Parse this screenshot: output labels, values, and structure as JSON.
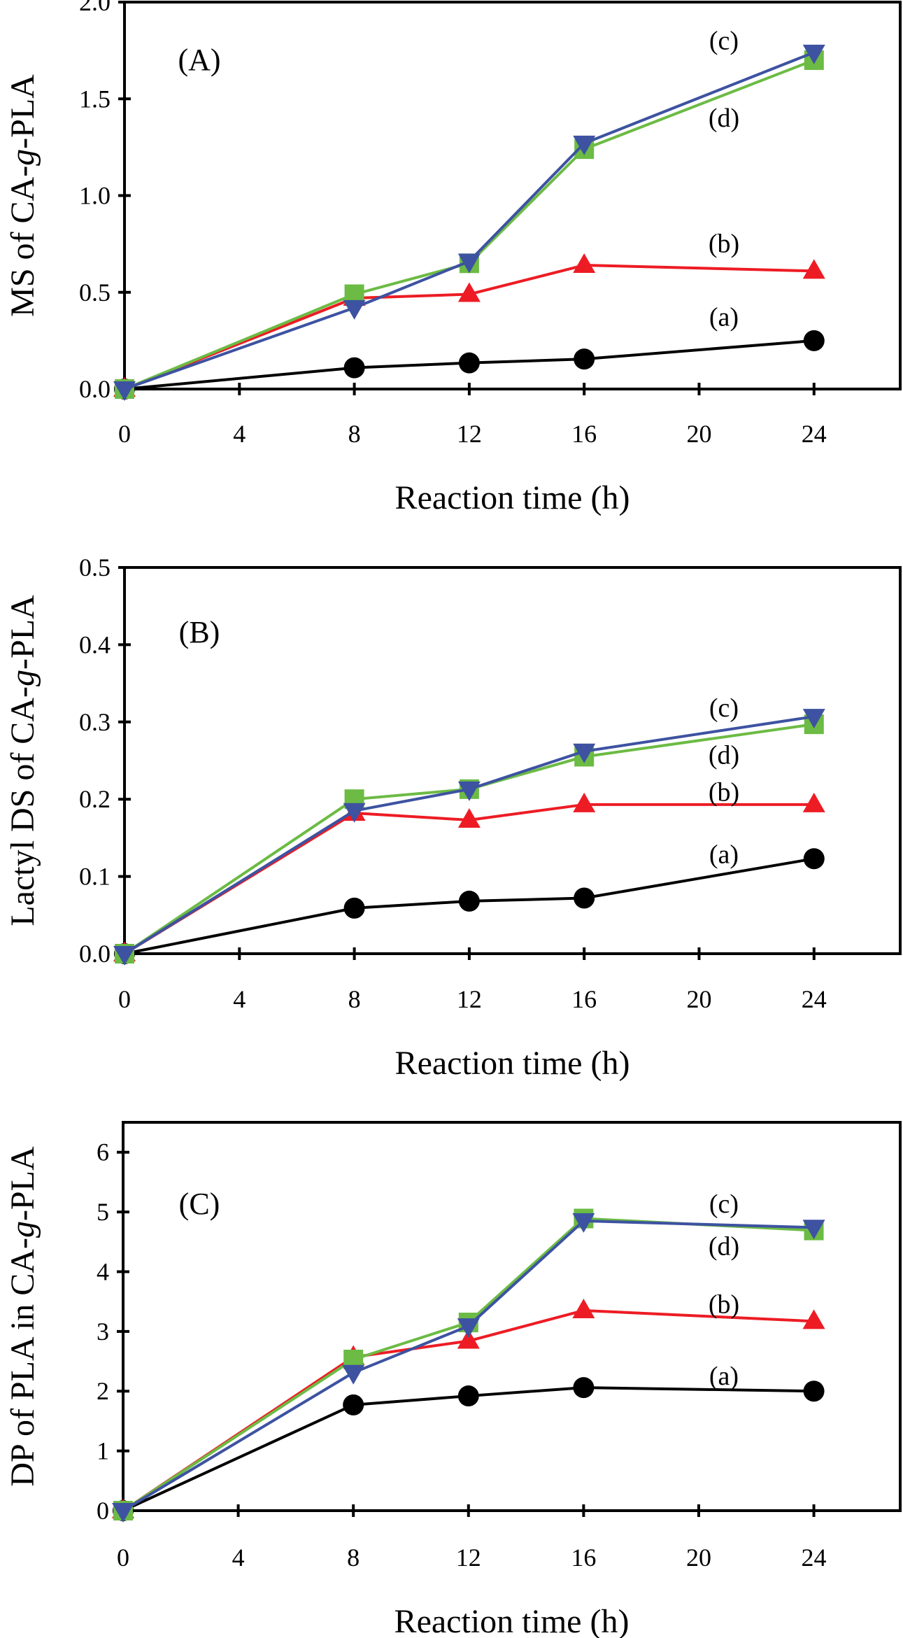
{
  "chart_data": [
    {
      "type": "line",
      "panel_label": "(A)",
      "xlabel": "Reaction time (h)",
      "ylabel_parts": [
        "MS of CA-",
        "g",
        "-PLA"
      ],
      "x": [
        0,
        8,
        12,
        16,
        24
      ],
      "xlim": [
        0,
        27
      ],
      "xticks": [
        0,
        4,
        8,
        12,
        16,
        20,
        24
      ],
      "xtick_labels": [
        "0",
        "4",
        "8",
        "12",
        "16",
        "20",
        "24"
      ],
      "ylim": [
        0,
        2.0
      ],
      "yticks": [
        0,
        0.5,
        1.0,
        1.5,
        2.0
      ],
      "ytick_labels": [
        "0.0",
        "0.5",
        "1.0",
        "1.5",
        "2.0"
      ],
      "grid": false,
      "series": [
        {
          "name": "(a)",
          "marker": "circle",
          "color": "#000000",
          "values": [
            0,
            0.11,
            0.135,
            0.155,
            0.25
          ],
          "label_y": 0.37
        },
        {
          "name": "(b)",
          "marker": "triangle-up",
          "color": "#ed1c24",
          "values": [
            0,
            0.47,
            0.49,
            0.64,
            0.61
          ],
          "label_y": 0.75
        },
        {
          "name": "(d)",
          "marker": "square",
          "color": "#6cbb44",
          "values": [
            0,
            0.49,
            0.65,
            1.24,
            1.7
          ],
          "label_y": 1.4
        },
        {
          "name": "(c)",
          "marker": "triangle-down",
          "color": "#3d52a1",
          "values": [
            0,
            0.42,
            0.66,
            1.27,
            1.74
          ],
          "label_y": 1.8
        }
      ]
    },
    {
      "type": "line",
      "panel_label": "(B)",
      "xlabel": "Reaction time (h)",
      "ylabel_parts": [
        "Lactyl DS of CA-",
        "g",
        "-PLA"
      ],
      "x": [
        0,
        8,
        12,
        16,
        24
      ],
      "xlim": [
        0,
        27
      ],
      "xticks": [
        0,
        4,
        8,
        12,
        16,
        20,
        24
      ],
      "xtick_labels": [
        "0",
        "4",
        "8",
        "12",
        "16",
        "20",
        "24"
      ],
      "ylim": [
        0,
        0.5
      ],
      "yticks": [
        0,
        0.1,
        0.2,
        0.3,
        0.4,
        0.5
      ],
      "ytick_labels": [
        "0.0",
        "0.1",
        "0.2",
        "0.3",
        "0.4",
        "0.5"
      ],
      "grid": false,
      "series": [
        {
          "name": "(a)",
          "marker": "circle",
          "color": "#000000",
          "values": [
            0,
            0.059,
            0.068,
            0.072,
            0.123
          ],
          "label_y": 0.128
        },
        {
          "name": "(b)",
          "marker": "triangle-up",
          "color": "#ed1c24",
          "values": [
            0,
            0.182,
            0.173,
            0.193,
            0.193
          ],
          "label_y": 0.209
        },
        {
          "name": "(d)",
          "marker": "square",
          "color": "#6cbb44",
          "values": [
            0,
            0.2,
            0.213,
            0.255,
            0.297
          ],
          "label_y": 0.257
        },
        {
          "name": "(c)",
          "marker": "triangle-down",
          "color": "#3d52a1",
          "values": [
            0,
            0.185,
            0.213,
            0.262,
            0.307
          ],
          "label_y": 0.318
        }
      ]
    },
    {
      "type": "line",
      "panel_label": "(C)",
      "xlabel": "Reaction time (h)",
      "ylabel_parts": [
        "DP of PLA in CA-",
        "g",
        "-PLA"
      ],
      "x": [
        0,
        8,
        12,
        16,
        24
      ],
      "xlim": [
        0,
        27
      ],
      "xticks": [
        0,
        4,
        8,
        12,
        16,
        20,
        24
      ],
      "xtick_labels": [
        "0",
        "4",
        "8",
        "12",
        "16",
        "20",
        "24"
      ],
      "ylim": [
        0,
        6.5
      ],
      "yticks": [
        0,
        1,
        2,
        3,
        4,
        5,
        6
      ],
      "ytick_labels": [
        "0",
        "1",
        "2",
        "3",
        "4",
        "5",
        "6"
      ],
      "grid": false,
      "series": [
        {
          "name": "(a)",
          "marker": "circle",
          "color": "#000000",
          "values": [
            0,
            1.77,
            1.92,
            2.06,
            2.0
          ],
          "label_y": 2.25
        },
        {
          "name": "(b)",
          "marker": "triangle-up",
          "color": "#ed1c24",
          "values": [
            0,
            2.57,
            2.84,
            3.35,
            3.17
          ],
          "label_y": 3.45
        },
        {
          "name": "(d)",
          "marker": "square",
          "color": "#6cbb44",
          "values": [
            0,
            2.53,
            3.15,
            4.89,
            4.69
          ],
          "label_y": 4.42
        },
        {
          "name": "(c)",
          "marker": "triangle-down",
          "color": "#3d52a1",
          "values": [
            0,
            2.31,
            3.09,
            4.85,
            4.74
          ],
          "label_y": 5.13
        }
      ]
    }
  ]
}
